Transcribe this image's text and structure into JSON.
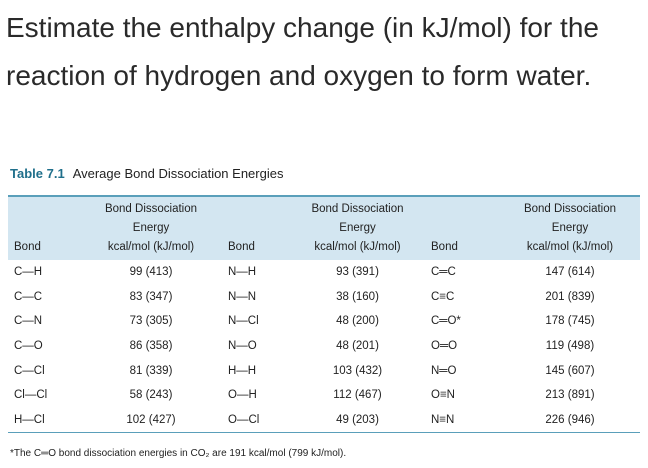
{
  "question": "Estimate the enthalpy change (in kJ/mol) for the reaction of hydrogen and oxygen to form water.",
  "table": {
    "label": "Table 7.1",
    "caption": "Average Bond Dissociation Energies",
    "header": [
      [
        "Bond"
      ],
      [
        "Bond Dissociation",
        "Energy",
        "kcal/mol (kJ/mol)"
      ],
      [
        "Bond"
      ],
      [
        "Bond Dissociation",
        "Energy",
        "kcal/mol (kJ/mol)"
      ],
      [
        "Bond"
      ],
      [
        "Bond Dissociation",
        "Energy",
        "kcal/mol (kJ/mol)"
      ]
    ],
    "rows": [
      [
        "C—H",
        "99 (413)",
        "N—H",
        "93 (391)",
        "C═C",
        "147 (614)"
      ],
      [
        "C—C",
        "83 (347)",
        "N—N",
        "38 (160)",
        "C≡C",
        "201 (839)"
      ],
      [
        "C—N",
        "73 (305)",
        "N—Cl",
        "48 (200)",
        "C═O*",
        "178 (745)"
      ],
      [
        "C—O",
        "86 (358)",
        "N—O",
        "48 (201)",
        "O═O",
        "119 (498)"
      ],
      [
        "C—Cl",
        "81 (339)",
        "H—H",
        "103 (432)",
        "N═O",
        "145 (607)"
      ],
      [
        "Cl—Cl",
        "58 (243)",
        "O—H",
        "112 (467)",
        "O≡N",
        "213 (891)"
      ],
      [
        "H—Cl",
        "102 (427)",
        "O—Cl",
        "49 (203)",
        "N≡N",
        "226 (946)"
      ]
    ],
    "footnote": "*The C═O bond dissociation energies in CO₂ are 191 kcal/mol (799 kJ/mol)."
  }
}
